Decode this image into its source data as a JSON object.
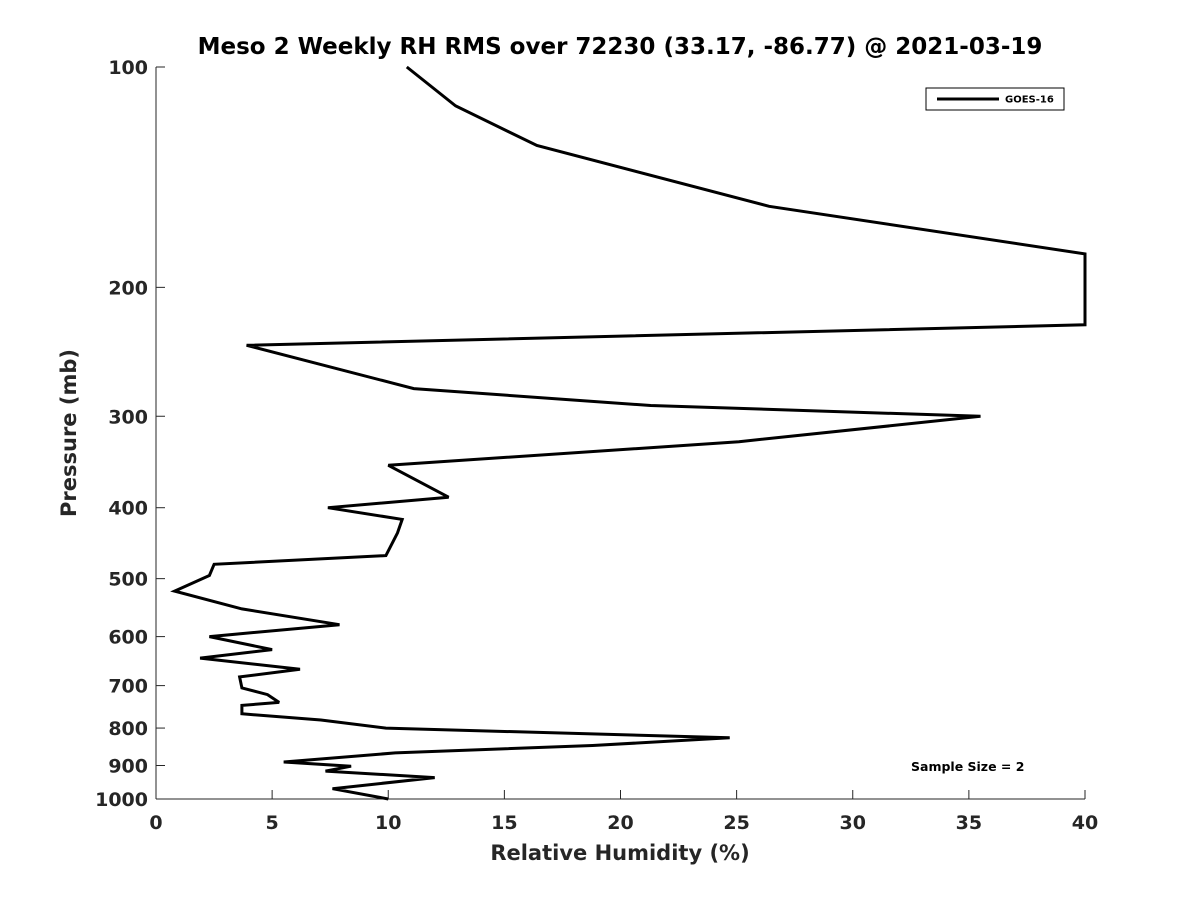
{
  "chart_data": {
    "type": "line",
    "title": "Meso 2 Weekly RH RMS over 72230 (33.17, -86.77) @ 2021-03-19",
    "xlabel": "Relative Humidity (%)",
    "ylabel": "Pressure (mb)",
    "xlim": [
      0,
      40
    ],
    "ylim": [
      100,
      1000
    ],
    "yscale": "log",
    "y_reversed": true,
    "grid": false,
    "xticks": [
      0,
      5,
      10,
      15,
      20,
      25,
      30,
      35,
      40
    ],
    "xtick_labels": [
      "0",
      "5",
      "10",
      "15",
      "20",
      "25",
      "30",
      "35",
      "40"
    ],
    "yticks": [
      100,
      200,
      300,
      400,
      500,
      600,
      700,
      800,
      900,
      1000
    ],
    "ytick_labels": [
      "100",
      "200",
      "300",
      "400",
      "500",
      "600",
      "700",
      "800",
      "900",
      "1000"
    ],
    "legend_position": "top-right",
    "annotation": "Sample Size = 2",
    "series": [
      {
        "name": "GOES-16",
        "color": "#000000",
        "x": [
          10.8,
          12.9,
          16.4,
          26.4,
          40,
          40,
          3.9,
          11.1,
          21.3,
          35.5,
          25.1,
          10.0,
          12.6,
          7.4,
          10.6,
          10.4,
          9.9,
          2.5,
          2.3,
          0.8,
          3.7,
          7.9,
          2.3,
          5.0,
          1.9,
          6.2,
          3.6,
          3.7,
          4.8,
          5.3,
          3.7,
          3.7,
          7.1,
          9.9,
          24.7,
          18.8,
          10.3,
          5.5,
          8.4,
          7.3,
          12.0,
          7.6,
          10.0
        ],
        "y": [
          100,
          113,
          128,
          155,
          180,
          225,
          240,
          275,
          290,
          300,
          325,
          350,
          387,
          400,
          415,
          433,
          465,
          478,
          495,
          520,
          550,
          578,
          600,
          625,
          642,
          665,
          681,
          705,
          720,
          738,
          745,
          765,
          780,
          800,
          825,
          845,
          865,
          890,
          902,
          916,
          935,
          968,
          1000
        ]
      }
    ]
  }
}
